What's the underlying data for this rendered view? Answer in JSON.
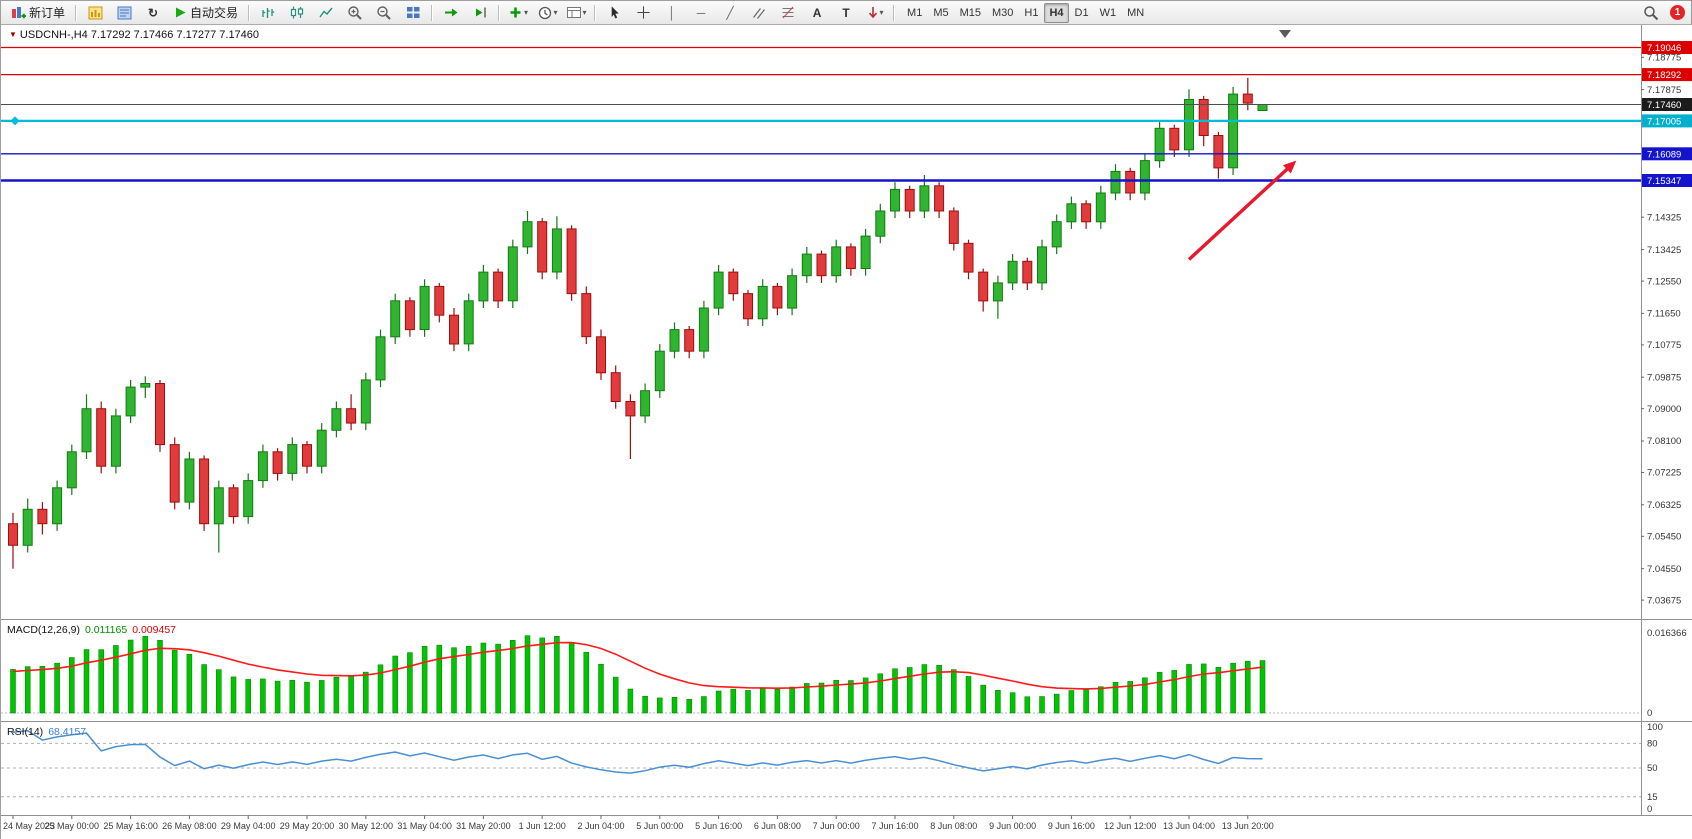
{
  "toolbar": {
    "new_order": "新订单",
    "auto_trading": "自动交易",
    "timeframe_buttons": [
      "M1",
      "M5",
      "M15",
      "M30",
      "H1",
      "H4",
      "D1",
      "W1",
      "MN"
    ],
    "active_timeframe": "H4",
    "notification_count": "1"
  },
  "icons": {
    "symbol_marker": "▼",
    "vline_tool": "│",
    "hline_tool": "─",
    "trendline_tool": "╱",
    "text_tool": "A",
    "label_tool": "T",
    "caret": "▾",
    "refresh": "↻"
  },
  "chart": {
    "title": "USDCNH-,H4 7.17292 7.17466 7.17277 7.17460",
    "symbol": "USDCNH-",
    "period": "H4",
    "readout": {
      "open": "7.17292",
      "high": "7.17466",
      "low": "7.17277",
      "close": "7.17460"
    }
  },
  "chart_data": {
    "type": "candlestick",
    "symbol": "USDCNH",
    "period": "H4",
    "price_axis": {
      "min": 7.034,
      "max": 7.1945,
      "ticks": [
        "7.18775",
        "7.17875",
        "7.14325",
        "7.13425",
        "7.12550",
        "7.11650",
        "7.10775",
        "7.09875",
        "7.09000",
        "7.08100",
        "7.07225",
        "7.06325",
        "7.05450",
        "7.04550",
        "7.03675"
      ]
    },
    "hlines": [
      {
        "price": 7.19046,
        "label": "7.19046",
        "color": "#e00000",
        "width": 1.3,
        "badge_color": "#dd0000"
      },
      {
        "price": 7.18292,
        "label": "7.18292",
        "color": "#e00000",
        "width": 1.3,
        "badge_color": "#dd0000"
      },
      {
        "price": 7.1746,
        "label": "7.17460",
        "color": "#4d4d4d",
        "width": 1,
        "badge_color": "#1c1c1c",
        "current": true
      },
      {
        "price": 7.17005,
        "label": "7.17005",
        "color": "#00bcd8",
        "width": 2.2,
        "badge_color": "#00b0cc",
        "marker": true
      },
      {
        "price": 7.16089,
        "label": "7.16089",
        "color": "#1414cc",
        "width": 1.3,
        "badge_color": "#1414cc"
      },
      {
        "price": 7.15347,
        "label": "7.15347",
        "color": "#1414cc",
        "width": 2.4,
        "badge_color": "#1414cc"
      }
    ],
    "candles": [
      [
        7.058,
        7.061,
        7.0455,
        7.052
      ],
      [
        7.052,
        7.065,
        7.05,
        7.062
      ],
      [
        7.062,
        7.064,
        7.055,
        7.058
      ],
      [
        7.058,
        7.07,
        7.056,
        7.068
      ],
      [
        7.068,
        7.08,
        7.066,
        7.078
      ],
      [
        7.078,
        7.094,
        7.076,
        7.09
      ],
      [
        7.09,
        7.092,
        7.072,
        7.074
      ],
      [
        7.074,
        7.09,
        7.072,
        7.088
      ],
      [
        7.088,
        7.098,
        7.086,
        7.096
      ],
      [
        7.096,
        7.099,
        7.093,
        7.097
      ],
      [
        7.097,
        7.098,
        7.078,
        7.08
      ],
      [
        7.08,
        7.082,
        7.062,
        7.064
      ],
      [
        7.064,
        7.078,
        7.062,
        7.076
      ],
      [
        7.076,
        7.077,
        7.056,
        7.058
      ],
      [
        7.058,
        7.07,
        7.05,
        7.068
      ],
      [
        7.068,
        7.069,
        7.058,
        7.06
      ],
      [
        7.06,
        7.072,
        7.058,
        7.07
      ],
      [
        7.07,
        7.08,
        7.068,
        7.078
      ],
      [
        7.078,
        7.079,
        7.07,
        7.072
      ],
      [
        7.072,
        7.082,
        7.07,
        7.08
      ],
      [
        7.08,
        7.081,
        7.072,
        7.074
      ],
      [
        7.074,
        7.086,
        7.072,
        7.084
      ],
      [
        7.084,
        7.092,
        7.082,
        7.09
      ],
      [
        7.09,
        7.094,
        7.084,
        7.086
      ],
      [
        7.086,
        7.1,
        7.084,
        7.098
      ],
      [
        7.098,
        7.112,
        7.096,
        7.11
      ],
      [
        7.11,
        7.122,
        7.108,
        7.12
      ],
      [
        7.12,
        7.121,
        7.11,
        7.112
      ],
      [
        7.112,
        7.126,
        7.11,
        7.124
      ],
      [
        7.124,
        7.125,
        7.114,
        7.116
      ],
      [
        7.116,
        7.118,
        7.106,
        7.108
      ],
      [
        7.108,
        7.122,
        7.106,
        7.12
      ],
      [
        7.12,
        7.13,
        7.118,
        7.128
      ],
      [
        7.128,
        7.129,
        7.118,
        7.12
      ],
      [
        7.12,
        7.137,
        7.118,
        7.135
      ],
      [
        7.135,
        7.145,
        7.133,
        7.142
      ],
      [
        7.142,
        7.143,
        7.126,
        7.128
      ],
      [
        7.128,
        7.1435,
        7.126,
        7.14
      ],
      [
        7.14,
        7.141,
        7.12,
        7.122
      ],
      [
        7.122,
        7.124,
        7.108,
        7.11
      ],
      [
        7.11,
        7.112,
        7.098,
        7.1
      ],
      [
        7.1,
        7.102,
        7.09,
        7.092
      ],
      [
        7.092,
        7.094,
        7.076,
        7.088
      ],
      [
        7.088,
        7.097,
        7.086,
        7.095
      ],
      [
        7.095,
        7.108,
        7.093,
        7.106
      ],
      [
        7.106,
        7.114,
        7.104,
        7.112
      ],
      [
        7.112,
        7.113,
        7.104,
        7.106
      ],
      [
        7.106,
        7.12,
        7.104,
        7.118
      ],
      [
        7.118,
        7.13,
        7.116,
        7.128
      ],
      [
        7.128,
        7.129,
        7.12,
        7.122
      ],
      [
        7.122,
        7.123,
        7.113,
        7.115
      ],
      [
        7.115,
        7.126,
        7.113,
        7.124
      ],
      [
        7.124,
        7.125,
        7.116,
        7.118
      ],
      [
        7.118,
        7.129,
        7.116,
        7.127
      ],
      [
        7.127,
        7.135,
        7.125,
        7.133
      ],
      [
        7.133,
        7.134,
        7.125,
        7.127
      ],
      [
        7.127,
        7.137,
        7.125,
        7.135
      ],
      [
        7.135,
        7.136,
        7.127,
        7.129
      ],
      [
        7.129,
        7.14,
        7.127,
        7.138
      ],
      [
        7.138,
        7.147,
        7.136,
        7.145
      ],
      [
        7.145,
        7.153,
        7.143,
        7.151
      ],
      [
        7.151,
        7.152,
        7.143,
        7.145
      ],
      [
        7.145,
        7.155,
        7.143,
        7.152
      ],
      [
        7.152,
        7.153,
        7.143,
        7.145
      ],
      [
        7.145,
        7.146,
        7.134,
        7.136
      ],
      [
        7.136,
        7.137,
        7.126,
        7.128
      ],
      [
        7.128,
        7.129,
        7.117,
        7.12
      ],
      [
        7.12,
        7.127,
        7.115,
        7.125
      ],
      [
        7.125,
        7.133,
        7.123,
        7.131
      ],
      [
        7.131,
        7.132,
        7.123,
        7.125
      ],
      [
        7.125,
        7.137,
        7.123,
        7.135
      ],
      [
        7.135,
        7.144,
        7.133,
        7.142
      ],
      [
        7.142,
        7.149,
        7.14,
        7.147
      ],
      [
        7.147,
        7.148,
        7.14,
        7.142
      ],
      [
        7.142,
        7.152,
        7.14,
        7.15
      ],
      [
        7.15,
        7.158,
        7.148,
        7.156
      ],
      [
        7.156,
        7.157,
        7.148,
        7.15
      ],
      [
        7.15,
        7.161,
        7.148,
        7.159
      ],
      [
        7.159,
        7.17,
        7.157,
        7.168
      ],
      [
        7.168,
        7.169,
        7.16,
        7.162
      ],
      [
        7.162,
        7.1788,
        7.16,
        7.176
      ],
      [
        7.176,
        7.177,
        7.163,
        7.166
      ],
      [
        7.166,
        7.167,
        7.154,
        7.157
      ],
      [
        7.157,
        7.1795,
        7.155,
        7.1775
      ],
      [
        7.1775,
        7.182,
        7.173,
        7.175
      ],
      [
        7.17292,
        7.17466,
        7.17277,
        7.1746
      ]
    ],
    "time_axis": {
      "label_interval": 4,
      "labels": [
        "24 May 2023",
        "25 May 00:00",
        "25 May 16:00",
        "26 May 08:00",
        "29 May 04:00",
        "29 May 20:00",
        "30 May 12:00",
        "31 May 04:00",
        "31 May 20:00",
        "1 Jun 12:00",
        "2 Jun 04:00",
        "5 Jun 00:00",
        "5 Jun 16:00",
        "6 Jun 08:00",
        "7 Jun 00:00",
        "7 Jun 16:00",
        "8 Jun 08:00",
        "9 Jun 00:00",
        "9 Jun 16:00",
        "12 Jun 12:00",
        "13 Jun 04:00",
        "13 Jun 20:00"
      ]
    },
    "indicators": {
      "macd": {
        "label": "MACD(12,26,9)",
        "value": "0.011165",
        "signal_value": "0.009457",
        "scale_top": "0.016366",
        "scale_zero": "0",
        "params": {
          "fast": 12,
          "slow": 26,
          "signal": 9
        },
        "colors": {
          "histogram": "#00c400",
          "signal": "#ff1a1a"
        }
      },
      "rsi": {
        "label": "RSI(14)",
        "value": "68.4157",
        "period": 14,
        "levels": [
          "100",
          "80",
          "50",
          "15",
          "0"
        ],
        "dashed_levels": [
          80,
          50,
          15
        ],
        "color": "#4a8fd4"
      }
    },
    "annotations": [
      {
        "type": "arrow",
        "color": "#e8192c",
        "from_index": 80,
        "from_price": 7.1315,
        "to_index": 87.3,
        "to_price": 7.159
      }
    ]
  }
}
